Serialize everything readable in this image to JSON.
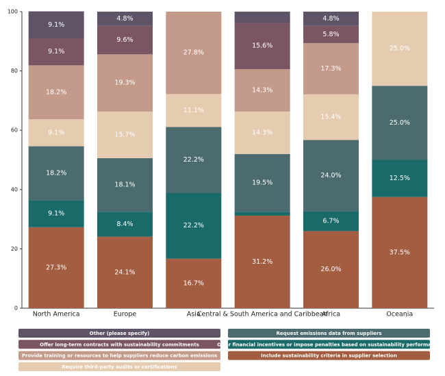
{
  "chart_data": {
    "type": "stacked_bar",
    "categories": [
      "North America",
      "Europe",
      "Asia",
      "Central & South America and Caribbean",
      "Africa",
      "Oceania"
    ],
    "ylim": [
      0,
      100
    ],
    "yticks": [
      0,
      20,
      40,
      60,
      80,
      100
    ],
    "series": [
      {
        "name": "Include sustainability criteria in supplier selection",
        "color": "#a35d40",
        "values": [
          27.3,
          24.1,
          16.7,
          31.2,
          26.0,
          37.5
        ],
        "value_labels": [
          "27.3%",
          "24.1%",
          "16.7%",
          "31.2%",
          "26.0%",
          "37.5%"
        ]
      },
      {
        "name": "Offer financial incentives or impose penalties based on sustainability performance",
        "color": "#1b6a6a",
        "values": [
          9.1,
          8.4,
          22.2,
          1.3,
          6.7,
          12.5
        ],
        "value_labels": [
          "9.1%",
          "8.4%",
          "22.2%",
          null,
          "6.7%",
          "12.5%"
        ]
      },
      {
        "name": "Request emissions data from suppliers",
        "color": "#4b6b6e",
        "values": [
          18.2,
          18.1,
          22.2,
          19.5,
          24.0,
          25.0
        ],
        "value_labels": [
          "18.2%",
          "18.1%",
          "22.2%",
          "19.5%",
          "24.0%",
          "25.0%"
        ]
      },
      {
        "name": "Require third-party audits or certifications",
        "color": "#e5cbb0",
        "values": [
          9.1,
          15.7,
          11.1,
          14.3,
          15.4,
          25.0
        ],
        "value_labels": [
          "9.1%",
          "15.7%",
          "11.1%",
          "14.3%",
          "15.4%",
          "25.0%"
        ]
      },
      {
        "name": "Provide training or resources to help suppliers reduce carbon emissions",
        "color": "#c49a8b",
        "values": [
          18.2,
          19.3,
          27.8,
          14.3,
          17.3,
          0
        ],
        "value_labels": [
          "18.2%",
          "19.3%",
          "27.8%",
          "14.3%",
          "17.3%",
          null
        ]
      },
      {
        "name": "Offer long-term contracts with sustainability commitments",
        "color": "#7a5562",
        "values": [
          9.1,
          9.6,
          0,
          15.6,
          5.8,
          0
        ],
        "value_labels": [
          "9.1%",
          "9.6%",
          null,
          "15.6%",
          "5.8%",
          null
        ]
      },
      {
        "name": "Other (please specify)",
        "color": "#5f5467",
        "values": [
          9.1,
          4.8,
          0,
          3.8,
          4.8,
          0
        ],
        "value_labels": [
          "9.1%",
          "4.8%",
          null,
          null,
          "4.8%",
          null
        ]
      }
    ]
  }
}
